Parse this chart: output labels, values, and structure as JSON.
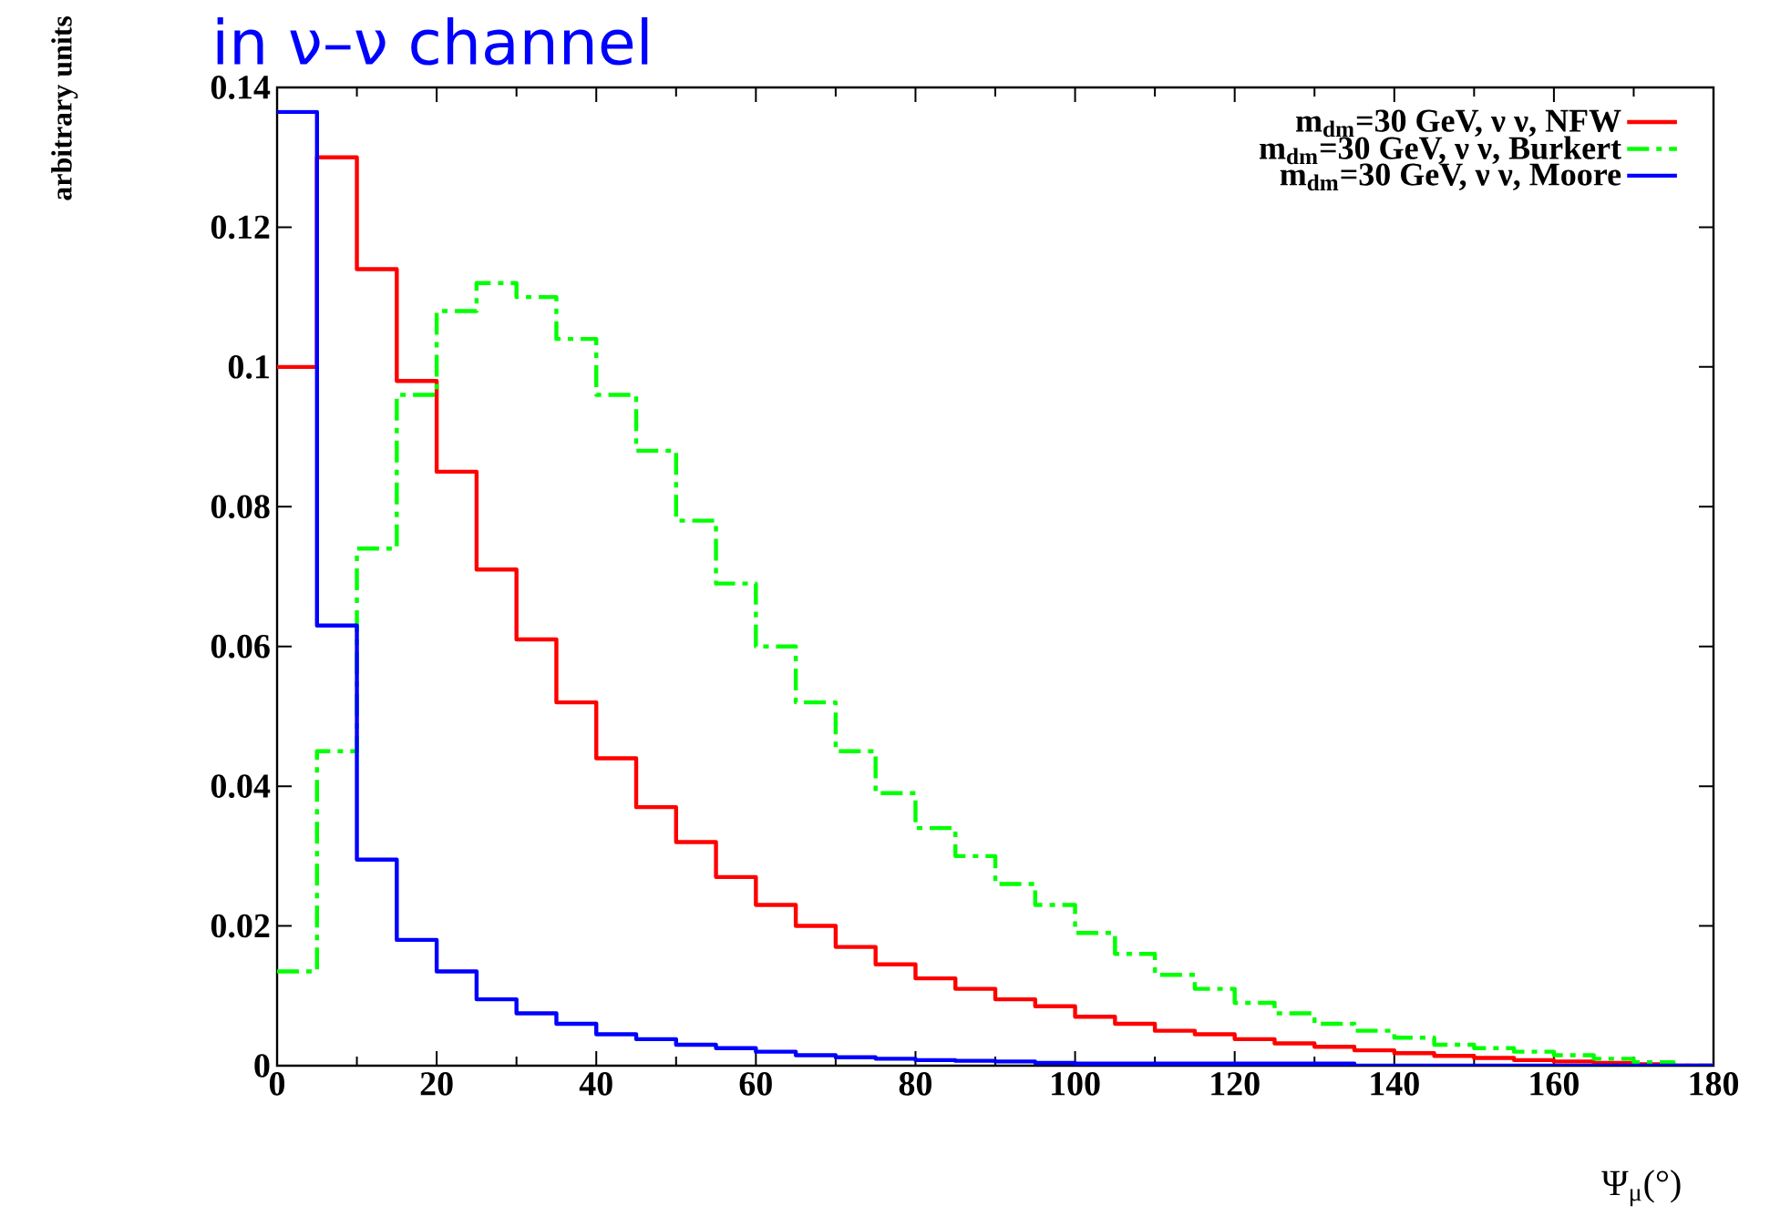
{
  "chart_data": {
    "type": "histogram",
    "title": "in ν–ν channel",
    "ylabel": "arbitrary units",
    "xlabel": "Ψ$_{μ}$(°)",
    "bins": [
      0,
      5,
      10,
      15,
      20,
      25,
      30,
      35,
      40,
      45,
      50,
      55,
      60,
      65,
      70,
      75,
      80,
      85,
      90,
      95,
      100,
      105,
      110,
      115,
      120,
      125,
      130,
      135,
      140,
      145,
      150,
      155,
      160,
      165,
      170,
      175,
      180
    ],
    "series": [
      {
        "name": "m$_{dm}$=30 GeV, ν ν, NFW",
        "color": "#ff0000",
        "line_style": "solid",
        "values": [
          0.1,
          0.13,
          0.114,
          0.098,
          0.085,
          0.071,
          0.061,
          0.052,
          0.044,
          0.037,
          0.032,
          0.027,
          0.023,
          0.02,
          0.017,
          0.0145,
          0.0125,
          0.011,
          0.0095,
          0.0085,
          0.007,
          0.006,
          0.005,
          0.0045,
          0.0038,
          0.0032,
          0.0027,
          0.0022,
          0.0018,
          0.0014,
          0.0011,
          0.0008,
          0.0006,
          0.0004,
          0.0002,
          0
        ]
      },
      {
        "name": "m$_{dm}$=30 GeV, ν ν, Burkert",
        "color": "#00ff00",
        "line_style": "dashdot",
        "values": [
          0.0135,
          0.045,
          0.074,
          0.096,
          0.108,
          0.112,
          0.11,
          0.104,
          0.096,
          0.088,
          0.078,
          0.069,
          0.06,
          0.052,
          0.045,
          0.039,
          0.034,
          0.03,
          0.026,
          0.023,
          0.019,
          0.016,
          0.013,
          0.011,
          0.009,
          0.0075,
          0.006,
          0.005,
          0.004,
          0.003,
          0.0025,
          0.002,
          0.0015,
          0.001,
          0.0005,
          0
        ]
      },
      {
        "name": "m$_{dm}$=30 GeV, ν ν, Moore",
        "color": "#0000ff",
        "line_style": "solid",
        "values": [
          0.1365,
          0.063,
          0.0295,
          0.018,
          0.0135,
          0.0095,
          0.0075,
          0.006,
          0.0045,
          0.0038,
          0.003,
          0.0025,
          0.002,
          0.0015,
          0.0012,
          0.001,
          0.0008,
          0.0007,
          0.0006,
          0.0004,
          0.0003,
          0.0003,
          0.0003,
          0.0003,
          0.0003,
          0.0003,
          0.0003,
          0,
          0,
          0,
          0,
          0,
          0,
          0,
          0,
          0
        ]
      }
    ],
    "xlim": [
      0,
      180
    ],
    "xticks": [
      0,
      20,
      40,
      60,
      80,
      100,
      120,
      140,
      160,
      180
    ],
    "ylim": [
      0,
      0.14
    ],
    "yticks": [
      0,
      0.02,
      0.04,
      0.06,
      0.08,
      0.1,
      0.12,
      0.14
    ],
    "legend": "top right"
  }
}
